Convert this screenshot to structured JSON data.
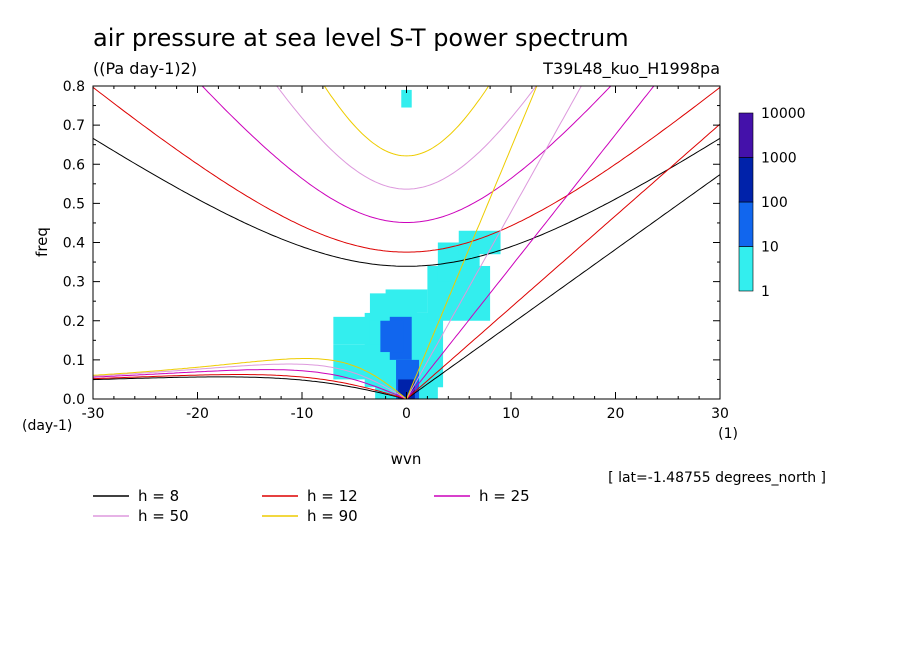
{
  "chart_data": {
    "type": "heatmap",
    "title": "air pressure at sea level S-T power spectrum",
    "units": "((Pa day-1)2)",
    "run_label": "T39L48_kuo_H1998pa",
    "xlabel": "wvn",
    "ylabel": "freq",
    "x_unit": "(1)",
    "y_unit": "(day-1)",
    "xlim": [
      -30,
      30
    ],
    "ylim": [
      0,
      0.8
    ],
    "x_ticks": [
      -30,
      -20,
      -10,
      0,
      10,
      20,
      30
    ],
    "y_ticks": [
      0.0,
      0.1,
      0.2,
      0.3,
      0.4,
      0.5,
      0.6,
      0.7,
      0.8
    ],
    "x_tick_labels": [
      "-30",
      "-20",
      "-10",
      "0",
      "10",
      "20",
      "30"
    ],
    "y_tick_labels": [
      "0.0",
      "0.1",
      "0.2",
      "0.3",
      "0.4",
      "0.5",
      "0.6",
      "0.7",
      "0.8"
    ],
    "note": "[ lat=-1.48755 degrees_north ]",
    "colorbar": {
      "levels": [
        "1",
        "10",
        "100",
        "1000",
        "10000"
      ],
      "colors": [
        "#33eeee",
        "#1166ee",
        "#0022aa",
        "#4411aa"
      ]
    },
    "power_regions": [
      {
        "level": 0,
        "x0": -0.5,
        "x1": 0.5,
        "y0": 0.745,
        "y1": 0.79
      },
      {
        "level": 0,
        "x0": -2,
        "x1": 2,
        "y0": 0.22,
        "y1": 0.28
      },
      {
        "level": 0,
        "x0": -4,
        "x1": 3.5,
        "y0": 0.03,
        "y1": 0.22
      },
      {
        "level": 0,
        "x0": -7,
        "x1": -1,
        "y0": 0.05,
        "y1": 0.14
      },
      {
        "level": 0,
        "x0": -3.5,
        "x1": 1,
        "y0": 0.2,
        "y1": 0.27
      },
      {
        "level": 0,
        "x0": 2,
        "x1": 8,
        "y0": 0.2,
        "y1": 0.34
      },
      {
        "level": 0,
        "x0": 3,
        "x1": 7,
        "y0": 0.3,
        "y1": 0.4
      },
      {
        "level": 0,
        "x0": 5,
        "x1": 9,
        "y0": 0.37,
        "y1": 0.43
      },
      {
        "level": 0,
        "x0": -7,
        "x1": -3.5,
        "y0": 0.14,
        "y1": 0.21
      },
      {
        "level": 0,
        "x0": -3,
        "x1": 3,
        "y0": 0.0,
        "y1": 0.04
      },
      {
        "level": 1,
        "x0": -1.6,
        "x1": 0.5,
        "y0": 0.1,
        "y1": 0.21
      },
      {
        "level": 1,
        "x0": -1,
        "x1": 1.2,
        "y0": 0.0,
        "y1": 0.1
      },
      {
        "level": 1,
        "x0": -2.5,
        "x1": -0.3,
        "y0": 0.12,
        "y1": 0.2
      },
      {
        "level": 2,
        "x0": -0.8,
        "x1": 0.8,
        "y0": 0.0,
        "y1": 0.05
      }
    ],
    "series": [
      {
        "name": "h =  8",
        "equivalent_depth_m": 8,
        "color": "#000000"
      },
      {
        "name": "h = 12",
        "equivalent_depth_m": 12,
        "color": "#dd0000"
      },
      {
        "name": "h = 25",
        "equivalent_depth_m": 25,
        "color": "#cc00bb"
      },
      {
        "name": "h = 50",
        "equivalent_depth_m": 50,
        "color": "#dd99dd"
      },
      {
        "name": "h = 90",
        "equivalent_depth_m": 90,
        "color": "#eecc00"
      }
    ]
  }
}
